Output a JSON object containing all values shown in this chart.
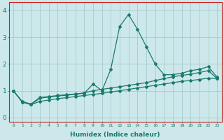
{
  "xlabel": "Humidex (Indice chaleur)",
  "xlim": [
    -0.5,
    23.5
  ],
  "ylim": [
    -0.15,
    4.3
  ],
  "xticks": [
    0,
    1,
    2,
    3,
    4,
    5,
    6,
    7,
    8,
    9,
    10,
    11,
    12,
    13,
    14,
    15,
    16,
    17,
    18,
    19,
    20,
    21,
    22,
    23
  ],
  "yticks": [
    0,
    1,
    2,
    3,
    4
  ],
  "background_color": "#cce8ea",
  "grid_color": "#a0c4c8",
  "line_color": "#1a7a6e",
  "spine_color": "#cc2222",
  "lines": [
    [
      1.0,
      0.6,
      0.5,
      0.75,
      0.78,
      0.82,
      0.85,
      0.88,
      0.9,
      1.25,
      1.0,
      1.8,
      3.4,
      3.85,
      3.3,
      2.65,
      2.0,
      1.6,
      1.6,
      1.65,
      1.75,
      1.8,
      1.9,
      1.5
    ],
    [
      1.0,
      0.58,
      0.48,
      0.72,
      0.76,
      0.8,
      0.83,
      0.87,
      0.92,
      1.0,
      1.05,
      1.1,
      1.15,
      1.2,
      1.25,
      1.3,
      1.38,
      1.45,
      1.52,
      1.57,
      1.62,
      1.68,
      1.75,
      1.45
    ],
    [
      1.0,
      0.58,
      0.48,
      0.6,
      0.65,
      0.7,
      0.74,
      0.78,
      0.82,
      0.86,
      0.9,
      0.95,
      1.0,
      1.05,
      1.1,
      1.15,
      1.2,
      1.25,
      1.3,
      1.35,
      1.38,
      1.42,
      1.47,
      1.45
    ]
  ]
}
